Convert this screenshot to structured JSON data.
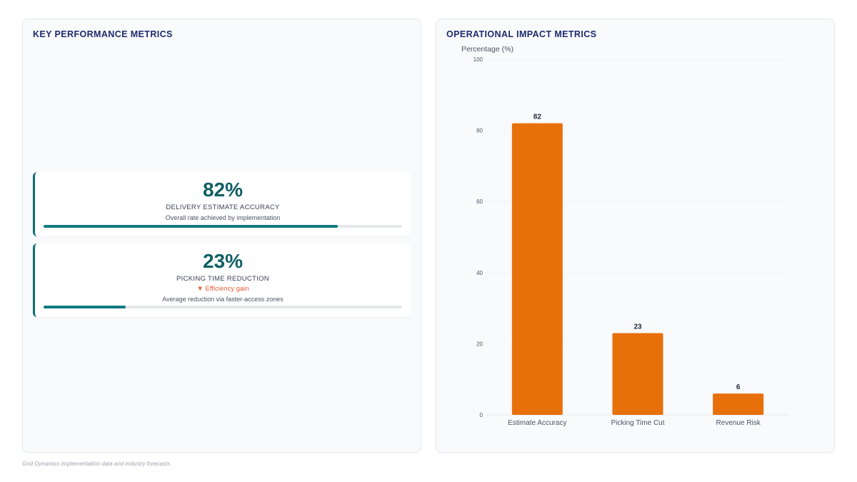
{
  "left_panel": {
    "title": "KEY PERFORMANCE METRICS",
    "kpis": [
      {
        "value": "82%",
        "label": "DELIVERY ESTIMATE ACCURACY",
        "description": "Overall rate achieved by implementation",
        "progress": 82
      },
      {
        "value": "23%",
        "label": "PICKING TIME REDUCTION",
        "trend": "▼ Efficiency gain",
        "description": "Average reduction via faster-access zones",
        "progress": 23
      }
    ]
  },
  "right_panel": {
    "title": "OPERATIONAL IMPACT METRICS"
  },
  "chart_data": {
    "type": "bar",
    "title": "",
    "xlabel": "",
    "ylabel": "Percentage (%)",
    "categories": [
      "Estimate Accuracy",
      "Picking Time Cut",
      "Revenue Risk"
    ],
    "values": [
      82,
      23,
      6
    ],
    "ylim": [
      0,
      100
    ],
    "yticks": [
      0,
      20,
      40,
      60,
      80,
      100
    ],
    "bar_color": "#e8700a",
    "data_labels": true,
    "grid": true
  },
  "footer": {
    "source": "Grid Dynamics implementation data and industry forecasts"
  },
  "colors": {
    "accent": "#0f7b80",
    "title": "#1e2a6b",
    "trend_down": "#e25c3b",
    "bar": "#e8700a"
  }
}
